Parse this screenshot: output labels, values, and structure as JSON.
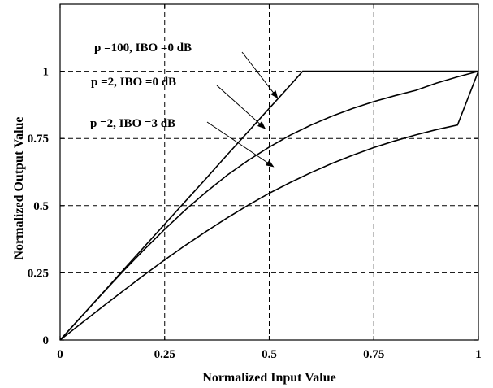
{
  "chart_data": {
    "type": "line",
    "title": "",
    "xlabel": "Normalized Input Value",
    "ylabel": "Normalized Output Value",
    "xlim": [
      0,
      1
    ],
    "ylim": [
      0,
      1.25
    ],
    "grid": true,
    "xticks": [
      0,
      0.25,
      0.5,
      0.75,
      1
    ],
    "xtick_labels": [
      "0",
      "0.25",
      "0.5",
      "0.75",
      "1"
    ],
    "yticks": [
      0,
      0.25,
      0.5,
      0.75,
      1
    ],
    "ytick_labels": [
      "0",
      "0.25",
      "0.5",
      "0.75",
      "1"
    ],
    "series": [
      {
        "x": [
          0,
          0.05,
          0.1,
          0.15,
          0.2,
          0.25,
          0.3,
          0.35,
          0.4,
          0.45,
          0.5,
          0.55,
          0.58,
          0.6,
          0.7,
          0.8,
          0.9,
          1.0
        ],
        "y": [
          0,
          0.086,
          0.172,
          0.259,
          0.345,
          0.431,
          0.517,
          0.603,
          0.69,
          0.776,
          0.862,
          0.948,
          1.0,
          1.0,
          1.0,
          1.0,
          1.0,
          1.0
        ]
      },
      {
        "x": [
          0,
          0.05,
          0.1,
          0.15,
          0.2,
          0.25,
          0.3,
          0.35,
          0.4,
          0.45,
          0.5,
          0.55,
          0.6,
          0.65,
          0.7,
          0.75,
          0.8,
          0.85,
          0.9,
          0.95,
          1.0
        ],
        "y": [
          0,
          0.086,
          0.171,
          0.255,
          0.335,
          0.412,
          0.485,
          0.552,
          0.614,
          0.669,
          0.718,
          0.762,
          0.8,
          0.833,
          0.862,
          0.887,
          0.909,
          0.929,
          0.956,
          0.979,
          1.0
        ]
      },
      {
        "x": [
          0,
          0.05,
          0.1,
          0.15,
          0.2,
          0.25,
          0.3,
          0.35,
          0.4,
          0.45,
          0.5,
          0.55,
          0.6,
          0.65,
          0.7,
          0.75,
          0.8,
          0.85,
          0.9,
          0.95,
          1.0
        ],
        "y": [
          0,
          0.061,
          0.122,
          0.182,
          0.241,
          0.298,
          0.353,
          0.405,
          0.455,
          0.502,
          0.546,
          0.586,
          0.623,
          0.657,
          0.688,
          0.716,
          0.741,
          0.763,
          0.783,
          0.8,
          1.0
        ]
      }
    ],
    "annotations": [
      {
        "text": "p =100, IBO =0 dB",
        "arrow_to": [
          0.52,
          0.9
        ]
      },
      {
        "text": "p =2, IBO =0 dB",
        "arrow_to": [
          0.49,
          0.787
        ]
      },
      {
        "text": "p =2, IBO =3 dB",
        "arrow_to": [
          0.51,
          0.645
        ]
      }
    ]
  }
}
